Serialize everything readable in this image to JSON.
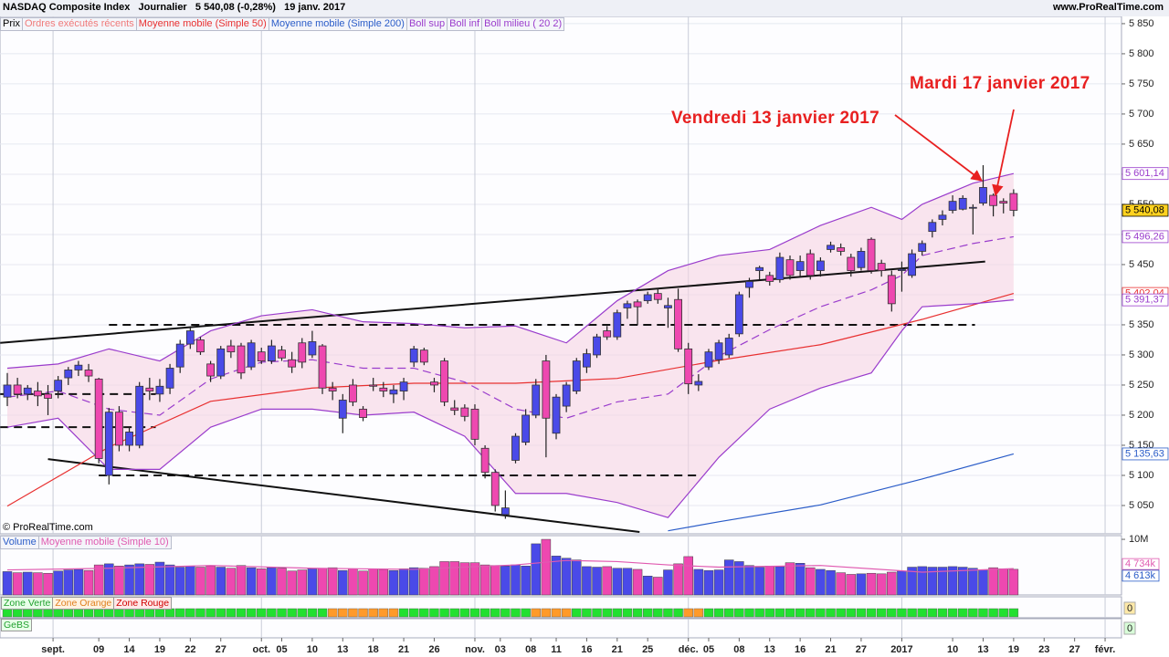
{
  "header": {
    "title": "NASDAQ Composite Index",
    "period": "Journalier",
    "quote": "5 540,08 (-0,28%)",
    "date": "19 janv. 2017",
    "site": "www.ProRealTime.com",
    "copyright": "© ProRealTime.com"
  },
  "legend": {
    "price": "Prix",
    "orders": "Ordres exécutés récents"
  },
  "annotations": [
    "Vendredi 13 janvier 2017",
    "Mardi 17 janvier 2017"
  ],
  "chart_data": {
    "type": "candlestick",
    "up_color": "#4a4ae8",
    "down_color": "#ee48b0",
    "ylim": [
      5003,
      5862
    ],
    "yticks": [
      {
        "value": 5850,
        "label": "5 850"
      },
      {
        "value": 5800,
        "label": "5 800"
      },
      {
        "value": 5750,
        "label": "5 750"
      },
      {
        "value": 5700,
        "label": "5 700"
      },
      {
        "value": 5650,
        "label": "5 650"
      },
      {
        "value": 5600,
        "label": "5 600"
      },
      {
        "value": 5550,
        "label": "5 550"
      },
      {
        "value": 5500,
        "label": "5 500"
      },
      {
        "value": 5450,
        "label": "5 450"
      },
      {
        "value": 5400,
        "label": "5 400"
      },
      {
        "value": 5350,
        "label": "5 350"
      },
      {
        "value": 5300,
        "label": "5 300"
      },
      {
        "value": 5250,
        "label": "5 250"
      },
      {
        "value": 5200,
        "label": "5 200"
      },
      {
        "value": 5150,
        "label": "5 150"
      },
      {
        "value": 5100,
        "label": "5 100"
      },
      {
        "value": 5050,
        "label": "5 050"
      }
    ],
    "xticks": [
      {
        "value": 4.5,
        "label": "sept."
      },
      {
        "value": 9,
        "label": "09"
      },
      {
        "value": 12,
        "label": "14"
      },
      {
        "value": 15,
        "label": "19"
      },
      {
        "value": 18,
        "label": "22"
      },
      {
        "value": 21,
        "label": "27"
      },
      {
        "value": 25,
        "label": "oct."
      },
      {
        "value": 27,
        "label": "05"
      },
      {
        "value": 30,
        "label": "10"
      },
      {
        "value": 33,
        "label": "13"
      },
      {
        "value": 36,
        "label": "18"
      },
      {
        "value": 39,
        "label": "21"
      },
      {
        "value": 42,
        "label": "26"
      },
      {
        "value": 46,
        "label": "nov."
      },
      {
        "value": 48.5,
        "label": "03"
      },
      {
        "value": 51.5,
        "label": "08"
      },
      {
        "value": 54,
        "label": "11"
      },
      {
        "value": 57,
        "label": "16"
      },
      {
        "value": 60,
        "label": "21"
      },
      {
        "value": 63,
        "label": "25"
      },
      {
        "value": 67,
        "label": "déc."
      },
      {
        "value": 69,
        "label": "05"
      },
      {
        "value": 72,
        "label": "08"
      },
      {
        "value": 75,
        "label": "13"
      },
      {
        "value": 78,
        "label": "16"
      },
      {
        "value": 81,
        "label": "21"
      },
      {
        "value": 84,
        "label": "27"
      },
      {
        "value": 88,
        "label": "2017"
      },
      {
        "value": 93,
        "label": "10"
      },
      {
        "value": 96,
        "label": "13"
      },
      {
        "value": 99,
        "label": "19"
      },
      {
        "value": 102,
        "label": "23"
      },
      {
        "value": 105,
        "label": "27"
      },
      {
        "value": 108,
        "label": "févr."
      }
    ],
    "month_ticks": [
      0,
      6,
      13,
      20,
      27,
      33
    ],
    "open": [
      5230,
      5250,
      5235,
      5240,
      5235,
      5240,
      5262,
      5275,
      5275,
      5260,
      5100,
      5205,
      5150,
      5150,
      5245,
      5235,
      5245,
      5280,
      5318,
      5325,
      5285,
      5265,
      5315,
      5315,
      5280,
      5305,
      5290,
      5308,
      5292,
      5320,
      5300,
      5315,
      5245,
      5195,
      5250,
      5210,
      5250,
      5245,
      5235,
      5240,
      5288,
      5308,
      5255,
      5290,
      5212,
      5212,
      5210,
      5145,
      5105,
      5035,
      5125,
      5155,
      5200,
      5290,
      5170,
      5215,
      5240,
      5280,
      5300,
      5340,
      5330,
      5378,
      5388,
      5390,
      5402,
      5378,
      5392,
      5310,
      5250,
      5280,
      5292,
      5300,
      5335,
      5412,
      5440,
      5432,
      5425,
      5458,
      5440,
      5468,
      5440,
      5475,
      5478,
      5462,
      5445,
      5492,
      5452,
      5432,
      5440,
      5432,
      5472,
      5505,
      5525,
      5540,
      5542,
      5545,
      5552,
      5565,
      5555,
      5568
    ],
    "high": [
      5270,
      5262,
      5250,
      5255,
      5250,
      5265,
      5280,
      5290,
      5285,
      5262,
      5212,
      5215,
      5180,
      5255,
      5262,
      5260,
      5285,
      5325,
      5345,
      5330,
      5290,
      5315,
      5325,
      5320,
      5325,
      5312,
      5325,
      5315,
      5305,
      5328,
      5340,
      5318,
      5255,
      5235,
      5260,
      5215,
      5262,
      5255,
      5250,
      5262,
      5315,
      5312,
      5262,
      5295,
      5225,
      5218,
      5218,
      5150,
      5110,
      5075,
      5170,
      5210,
      5260,
      5300,
      5235,
      5255,
      5295,
      5310,
      5335,
      5348,
      5375,
      5390,
      5392,
      5405,
      5410,
      5395,
      5410,
      5320,
      5268,
      5310,
      5325,
      5335,
      5405,
      5428,
      5448,
      5438,
      5470,
      5465,
      5465,
      5475,
      5462,
      5488,
      5485,
      5468,
      5478,
      5495,
      5458,
      5440,
      5455,
      5475,
      5490,
      5525,
      5540,
      5565,
      5565,
      5550,
      5615,
      5568,
      5560,
      5575
    ],
    "low": [
      5215,
      5228,
      5225,
      5215,
      5200,
      5228,
      5250,
      5265,
      5255,
      5120,
      5085,
      5140,
      5140,
      5145,
      5225,
      5222,
      5235,
      5270,
      5310,
      5300,
      5255,
      5260,
      5295,
      5260,
      5275,
      5285,
      5285,
      5290,
      5270,
      5278,
      5295,
      5235,
      5225,
      5170,
      5215,
      5190,
      5240,
      5230,
      5220,
      5225,
      5280,
      5283,
      5238,
      5215,
      5200,
      5190,
      5150,
      5095,
      5040,
      5028,
      5120,
      5150,
      5195,
      5130,
      5160,
      5205,
      5235,
      5270,
      5295,
      5325,
      5325,
      5360,
      5350,
      5385,
      5385,
      5345,
      5305,
      5235,
      5240,
      5275,
      5285,
      5295,
      5330,
      5395,
      5425,
      5415,
      5420,
      5425,
      5430,
      5425,
      5430,
      5470,
      5465,
      5430,
      5440,
      5435,
      5430,
      5372,
      5405,
      5428,
      5465,
      5495,
      5515,
      5535,
      5540,
      5500,
      5548,
      5530,
      5535,
      5530
    ],
    "close": [
      5250,
      5235,
      5245,
      5232,
      5228,
      5258,
      5275,
      5283,
      5265,
      5128,
      5205,
      5150,
      5172,
      5248,
      5240,
      5248,
      5278,
      5318,
      5340,
      5305,
      5265,
      5310,
      5305,
      5270,
      5320,
      5290,
      5315,
      5295,
      5280,
      5288,
      5322,
      5245,
      5240,
      5225,
      5222,
      5196,
      5248,
      5240,
      5242,
      5255,
      5310,
      5288,
      5250,
      5222,
      5208,
      5198,
      5160,
      5105,
      5050,
      5046,
      5165,
      5200,
      5250,
      5195,
      5230,
      5250,
      5290,
      5302,
      5330,
      5330,
      5370,
      5385,
      5380,
      5400,
      5392,
      5382,
      5310,
      5252,
      5256,
      5305,
      5320,
      5328,
      5400,
      5422,
      5445,
      5422,
      5462,
      5432,
      5455,
      5432,
      5456,
      5482,
      5472,
      5440,
      5472,
      5440,
      5440,
      5385,
      5442,
      5468,
      5485,
      5520,
      5532,
      5555,
      5560,
      5545,
      5578,
      5548,
      5552,
      5540.08
    ],
    "lines": [
      {
        "name": "Moyenne mobile (Simple 50)",
        "color": "#e83030",
        "x": [
          0,
          10,
          20,
          30,
          40,
          50,
          60,
          70,
          80,
          90,
          99
        ],
        "values": [
          5049,
          5147,
          5223,
          5245,
          5253,
          5253,
          5261,
          5291,
          5317,
          5359,
          5402.04
        ]
      },
      {
        "name": "Moyenne mobile (Simple 200)",
        "color": "#2a5cc8",
        "x": [
          65,
          70,
          80,
          90,
          99
        ],
        "values": [
          5008,
          5023,
          5051,
          5094,
          5135.63
        ]
      },
      {
        "name": "Boll sup",
        "color": "#9a3ccc",
        "x": [
          0,
          5,
          10,
          15,
          20,
          25,
          30,
          35,
          40,
          45,
          50,
          55,
          60,
          65,
          70,
          75,
          80,
          85,
          88,
          90,
          95,
          99
        ],
        "values": [
          5278,
          5285,
          5310,
          5290,
          5340,
          5365,
          5375,
          5355,
          5352,
          5345,
          5348,
          5320,
          5390,
          5440,
          5465,
          5475,
          5515,
          5545,
          5525,
          5550,
          5585,
          5601.14
        ]
      },
      {
        "name": "Boll inf",
        "color": "#9a3ccc",
        "x": [
          0,
          5,
          10,
          15,
          20,
          25,
          30,
          35,
          40,
          45,
          50,
          55,
          60,
          65,
          70,
          75,
          80,
          85,
          88,
          90,
          95,
          99
        ],
        "values": [
          5180,
          5195,
          5110,
          5110,
          5180,
          5210,
          5210,
          5200,
          5205,
          5165,
          5070,
          5070,
          5055,
          5030,
          5130,
          5210,
          5245,
          5270,
          5340,
          5380,
          5385,
          5391.37
        ]
      },
      {
        "name": "Boll milieu ( 20 2)",
        "color": "#9a3ccc",
        "dash": true,
        "x": [
          0,
          5,
          10,
          15,
          20,
          25,
          30,
          35,
          40,
          45,
          50,
          55,
          60,
          65,
          70,
          75,
          80,
          85,
          88,
          90,
          95,
          99
        ],
        "values": [
          5230,
          5240,
          5210,
          5200,
          5260,
          5288,
          5292,
          5278,
          5278,
          5255,
          5210,
          5195,
          5222,
          5235,
          5298,
          5342,
          5380,
          5408,
          5432,
          5465,
          5485,
          5496.26
        ]
      }
    ],
    "levels": [
      {
        "value": 5350,
        "from": 10,
        "to": 95.2
      },
      {
        "value": 5235,
        "from": -0.7,
        "to": 14.6
      },
      {
        "value": 5180,
        "from": -0.7,
        "to": 14.6
      },
      {
        "value": 5100,
        "from": 9,
        "to": 68
      }
    ],
    "trendlines": [
      {
        "x": [
          -0.7,
          96.2
        ],
        "y": [
          5320,
          5455
        ]
      },
      {
        "x": [
          4,
          62.2
        ],
        "y": [
          5127,
          5006
        ]
      }
    ],
    "price_labels": [
      {
        "value": 5601.14,
        "label": "5 601,14",
        "color": "#9a3ccc",
        "bg": "#ffffff"
      },
      {
        "value": 5540.08,
        "label": "5 540,08",
        "color": "#000000",
        "bg": "#ffd21e"
      },
      {
        "value": 5496.26,
        "label": "5 496,26",
        "color": "#9a3ccc",
        "bg": "#ffffff"
      },
      {
        "value": 5402.04,
        "label": "5 402,04",
        "color": "#e83030",
        "bg": "#ffffff"
      },
      {
        "value": 5391.37,
        "label": "5 391,37",
        "color": "#9a3ccc",
        "bg": "#ffffff"
      },
      {
        "value": 5135.63,
        "label": "5 135,63",
        "color": "#2a5cc8",
        "bg": "#ffffff"
      }
    ],
    "volume": {
      "title": "Volume",
      "ma_name": "Moyenne mobile (Simple 10)",
      "ma_color": "#e05ab0",
      "ylim": [
        0,
        10.5
      ],
      "yticks": [
        {
          "value": 10,
          "label": "10M"
        }
      ],
      "values": [
        4.2,
        4.0,
        4.1,
        4.0,
        3.9,
        4.3,
        4.5,
        4.6,
        4.4,
        5.4,
        5.6,
        5.2,
        5.4,
        5.6,
        5.5,
        5.9,
        5.4,
        5.0,
        5.2,
        5.0,
        5.2,
        5.0,
        4.8,
        5.3,
        4.9,
        4.7,
        4.9,
        4.8,
        4.3,
        4.5,
        4.7,
        4.8,
        4.9,
        4.4,
        4.7,
        4.3,
        4.7,
        4.6,
        4.4,
        4.7,
        4.9,
        4.8,
        5.1,
        6.0,
        6.0,
        5.8,
        5.8,
        5.4,
        5.3,
        5.2,
        5.4,
        5.2,
        9.2,
        10.0,
        7.0,
        6.6,
        6.3,
        5.1,
        5.0,
        5.1,
        4.8,
        4.8,
        4.6,
        3.4,
        3.2,
        4.5,
        5.6,
        6.9,
        4.6,
        4.4,
        4.5,
        6.3,
        6.0,
        5.3,
        5.0,
        5.2,
        5.1,
        5.8,
        5.7,
        4.9,
        4.6,
        4.4,
        4.0,
        3.7,
        3.8,
        3.9,
        3.8,
        4.1,
        4.3,
        5.0,
        5.1,
        5.0,
        5.0,
        5.1,
        5.0,
        4.8,
        4.5,
        4.9,
        4.7,
        4.613
      ],
      "ma_x": [
        0,
        10,
        20,
        30,
        40,
        45,
        50,
        55,
        60,
        65,
        70,
        80,
        90,
        99
      ],
      "ma_values": [
        4.5,
        4.8,
        5.3,
        4.8,
        4.6,
        5.0,
        5.4,
        6.2,
        6.0,
        5.4,
        5.0,
        5.3,
        4.1,
        4.734
      ],
      "labels": [
        {
          "value": 4.734,
          "label": "4 734k",
          "color": "#e05ab0"
        },
        {
          "value": 4.613,
          "label": "4 613k",
          "color": "#2a5cc8"
        }
      ]
    },
    "zones": {
      "labels": [
        "Zone Verte",
        "Zone Orange",
        "Zone Rouge"
      ],
      "green": "#22e030",
      "orange": "#ff9a2a",
      "orange_zones": [
        [
          32,
          38
        ],
        [
          52,
          55
        ],
        [
          67,
          68
        ]
      ],
      "value": 0
    },
    "gebs": {
      "label": "GeBS",
      "value": 0
    }
  }
}
